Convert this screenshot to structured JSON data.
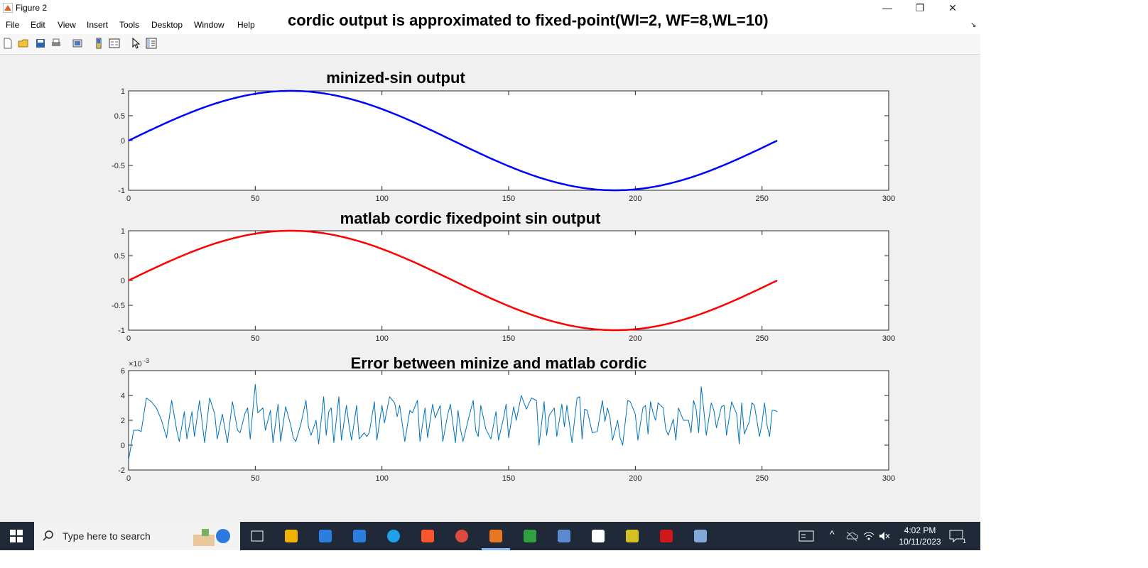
{
  "window": {
    "title": "Figure 2",
    "controls": {
      "minimize": "—",
      "restore": "❐",
      "close": "✕"
    }
  },
  "menu": [
    "File",
    "Edit",
    "View",
    "Insert",
    "Tools",
    "Desktop",
    "Window",
    "Help"
  ],
  "figure_title": "cordic output is approximated to fixed-point(WI=2, WF=8,WL=10)",
  "toolbar_icons": [
    "new-figure-icon",
    "open-icon",
    "save-icon",
    "print-icon",
    "print-preview-icon",
    "colorbar-icon",
    "legend-icon",
    "select-arrow-icon",
    "property-editor-icon"
  ],
  "chart_data": [
    {
      "type": "line",
      "title": "minized-sin output",
      "xlim": [
        0,
        300
      ],
      "ylim": [
        -1,
        1
      ],
      "xticks": [
        "0",
        "50",
        "100",
        "150",
        "200",
        "250",
        "300"
      ],
      "yticks": [
        "1",
        "0.5",
        "0",
        "-0.5",
        "-1"
      ],
      "color": "#0000ff",
      "series": [
        {
          "function": "sin(2*pi*n/256)",
          "n_range": [
            0,
            256
          ]
        }
      ]
    },
    {
      "type": "line",
      "title": "matlab cordic fixedpoint sin output",
      "xlim": [
        0,
        300
      ],
      "ylim": [
        -1,
        1
      ],
      "xticks": [
        "0",
        "50",
        "100",
        "150",
        "200",
        "250",
        "300"
      ],
      "yticks": [
        "1",
        "0.5",
        "0",
        "-0.5",
        "-1"
      ],
      "color": "#ff0000",
      "series": [
        {
          "function": "sin(2*pi*n/256)",
          "n_range": [
            0,
            256
          ]
        }
      ]
    },
    {
      "type": "line",
      "title": "Error between minize and matlab cordic",
      "xlim": [
        0,
        300
      ],
      "ylim": [
        -2,
        6
      ],
      "yscale_label": "×10",
      "yscale_exp": "-3",
      "xticks": [
        "0",
        "50",
        "100",
        "150",
        "200",
        "250",
        "300"
      ],
      "yticks": [
        "6",
        "4",
        "2",
        "0",
        "-2"
      ],
      "color": "#0072bd",
      "series": [
        {
          "name": "",
          "points": [
            [
              0,
              -1.2
            ],
            [
              1,
              0
            ],
            [
              2,
              1.2
            ],
            [
              4,
              1.2
            ],
            [
              5,
              1.1
            ],
            [
              7,
              3.8
            ],
            [
              9,
              3.5
            ],
            [
              11,
              3.0
            ],
            [
              13,
              2.0
            ],
            [
              15,
              0.6
            ],
            [
              17,
              3.6
            ],
            [
              19,
              1.2
            ],
            [
              20,
              0.3
            ],
            [
              22,
              2.7
            ],
            [
              23,
              0.5
            ],
            [
              25,
              2.7
            ],
            [
              26,
              0.7
            ],
            [
              28,
              3.6
            ],
            [
              30,
              0.2
            ],
            [
              32,
              3.8
            ],
            [
              34,
              2.5
            ],
            [
              35,
              0.5
            ],
            [
              37,
              2.5
            ],
            [
              39,
              0.2
            ],
            [
              41,
              3.5
            ],
            [
              43,
              1.2
            ],
            [
              44,
              1.0
            ],
            [
              46,
              2.6
            ],
            [
              47,
              3.0
            ],
            [
              48,
              0.5
            ],
            [
              50,
              4.9
            ],
            [
              51,
              2.6
            ],
            [
              53,
              3.0
            ],
            [
              54,
              1.2
            ],
            [
              56,
              2.8
            ],
            [
              57,
              0.2
            ],
            [
              59,
              3.3
            ],
            [
              60,
              0.3
            ],
            [
              62,
              3.1
            ],
            [
              64,
              1.6
            ],
            [
              65,
              0.6
            ],
            [
              66,
              0.3
            ],
            [
              68,
              1.7
            ],
            [
              70,
              3.6
            ],
            [
              71,
              1.5
            ],
            [
              72,
              0.8
            ],
            [
              74,
              2.0
            ],
            [
              75,
              0.1
            ],
            [
              77,
              3.9
            ],
            [
              78,
              0.8
            ],
            [
              79,
              2.7
            ],
            [
              80,
              3.0
            ],
            [
              81,
              0.2
            ],
            [
              83,
              3.9
            ],
            [
              84,
              0.4
            ],
            [
              86,
              3.2
            ],
            [
              87,
              1.6
            ],
            [
              88,
              0.4
            ],
            [
              90,
              3.2
            ],
            [
              91,
              0.5
            ],
            [
              93,
              1.0
            ],
            [
              94,
              0.7
            ],
            [
              95,
              1.0
            ],
            [
              97,
              3.5
            ],
            [
              98,
              0.4
            ],
            [
              100,
              3.2
            ],
            [
              101,
              1.8
            ],
            [
              103,
              3.9
            ],
            [
              105,
              3.4
            ],
            [
              106,
              2.3
            ],
            [
              107,
              3.2
            ],
            [
              109,
              0.3
            ],
            [
              111,
              2.8
            ],
            [
              112,
              2.6
            ],
            [
              114,
              3.6
            ],
            [
              115,
              0.3
            ],
            [
              117,
              3.0
            ],
            [
              118,
              0.6
            ],
            [
              120,
              3.3
            ],
            [
              121,
              2.2
            ],
            [
              123,
              3.2
            ],
            [
              124,
              0.3
            ],
            [
              126,
              2.5
            ],
            [
              127,
              3.3
            ],
            [
              129,
              0.2
            ],
            [
              130,
              2.8
            ],
            [
              131,
              1.3
            ],
            [
              132,
              0.3
            ],
            [
              134,
              2.0
            ],
            [
              136,
              3.6
            ],
            [
              137,
              1.2
            ],
            [
              138,
              0.7
            ],
            [
              139,
              3.2
            ],
            [
              141,
              1.3
            ],
            [
              143,
              0.5
            ],
            [
              145,
              2.7
            ],
            [
              146,
              0.4
            ],
            [
              148,
              2.2
            ],
            [
              149,
              3.3
            ],
            [
              150,
              0.6
            ],
            [
              152,
              3.1
            ],
            [
              153,
              2.0
            ],
            [
              155,
              4.0
            ],
            [
              157,
              2.9
            ],
            [
              159,
              3.8
            ],
            [
              161,
              3.6
            ],
            [
              162,
              0.0
            ],
            [
              164,
              3.5
            ],
            [
              165,
              0.8
            ],
            [
              166,
              2.4
            ],
            [
              168,
              3.0
            ],
            [
              169,
              0.7
            ],
            [
              171,
              3.3
            ],
            [
              172,
              1.5
            ],
            [
              173,
              3.2
            ],
            [
              175,
              0.2
            ],
            [
              177,
              3.8
            ],
            [
              178,
              3.9
            ],
            [
              179,
              0.5
            ],
            [
              180,
              2.9
            ],
            [
              181,
              2.8
            ],
            [
              183,
              1.0
            ],
            [
              185,
              1.1
            ],
            [
              187,
              3.6
            ],
            [
              188,
              1.9
            ],
            [
              189,
              3.0
            ],
            [
              190,
              2.2
            ],
            [
              191,
              0.4
            ],
            [
              193,
              2.0
            ],
            [
              194,
              0.6
            ],
            [
              195,
              0.0
            ],
            [
              197,
              3.6
            ],
            [
              198,
              3.5
            ],
            [
              200,
              2.5
            ],
            [
              201,
              0.4
            ],
            [
              203,
              3.0
            ],
            [
              204,
              3.2
            ],
            [
              205,
              0.9
            ],
            [
              206,
              3.5
            ],
            [
              207,
              2.6
            ],
            [
              208,
              2.0
            ],
            [
              209,
              3.4
            ],
            [
              211,
              3.0
            ],
            [
              212,
              1.3
            ],
            [
              213,
              0.8
            ],
            [
              215,
              2.1
            ],
            [
              216,
              0.4
            ],
            [
              217,
              3.0
            ],
            [
              218,
              2.5
            ],
            [
              219,
              2.0
            ],
            [
              221,
              2.0
            ],
            [
              222,
              1.0
            ],
            [
              223,
              3.6
            ],
            [
              224,
              2.9
            ],
            [
              225,
              1.0
            ],
            [
              226,
              4.7
            ],
            [
              227,
              2.9
            ],
            [
              228,
              0.8
            ],
            [
              230,
              3.4
            ],
            [
              231,
              2.8
            ],
            [
              232,
              1.4
            ],
            [
              234,
              3.1
            ],
            [
              235,
              3.2
            ],
            [
              236,
              0.8
            ],
            [
              238,
              3.5
            ],
            [
              240,
              2.5
            ],
            [
              241,
              0.1
            ],
            [
              242,
              3.4
            ],
            [
              243,
              0.9
            ],
            [
              245,
              1.9
            ],
            [
              246,
              3.4
            ],
            [
              247,
              3.2
            ],
            [
              249,
              0.7
            ],
            [
              250,
              1.8
            ],
            [
              251,
              3.4
            ],
            [
              252,
              1.6
            ],
            [
              253,
              0.7
            ],
            [
              254,
              2.8
            ],
            [
              255,
              2.8
            ],
            [
              256,
              2.7
            ]
          ]
        }
      ]
    }
  ],
  "taskbar": {
    "search_placeholder": "Type here to search",
    "time": "4:02 PM",
    "date": "10/11/2023",
    "notification_count": "1",
    "apps": [
      "task-view-icon",
      "file-explorer-icon",
      "store-icon",
      "mail-icon",
      "edge-icon",
      "brave-icon",
      "chrome-icon",
      "matlab-icon",
      "notepad-icon",
      "calculator-icon",
      "settings-icon",
      "vivado-icon",
      "redapp-icon",
      "paint-icon"
    ]
  }
}
